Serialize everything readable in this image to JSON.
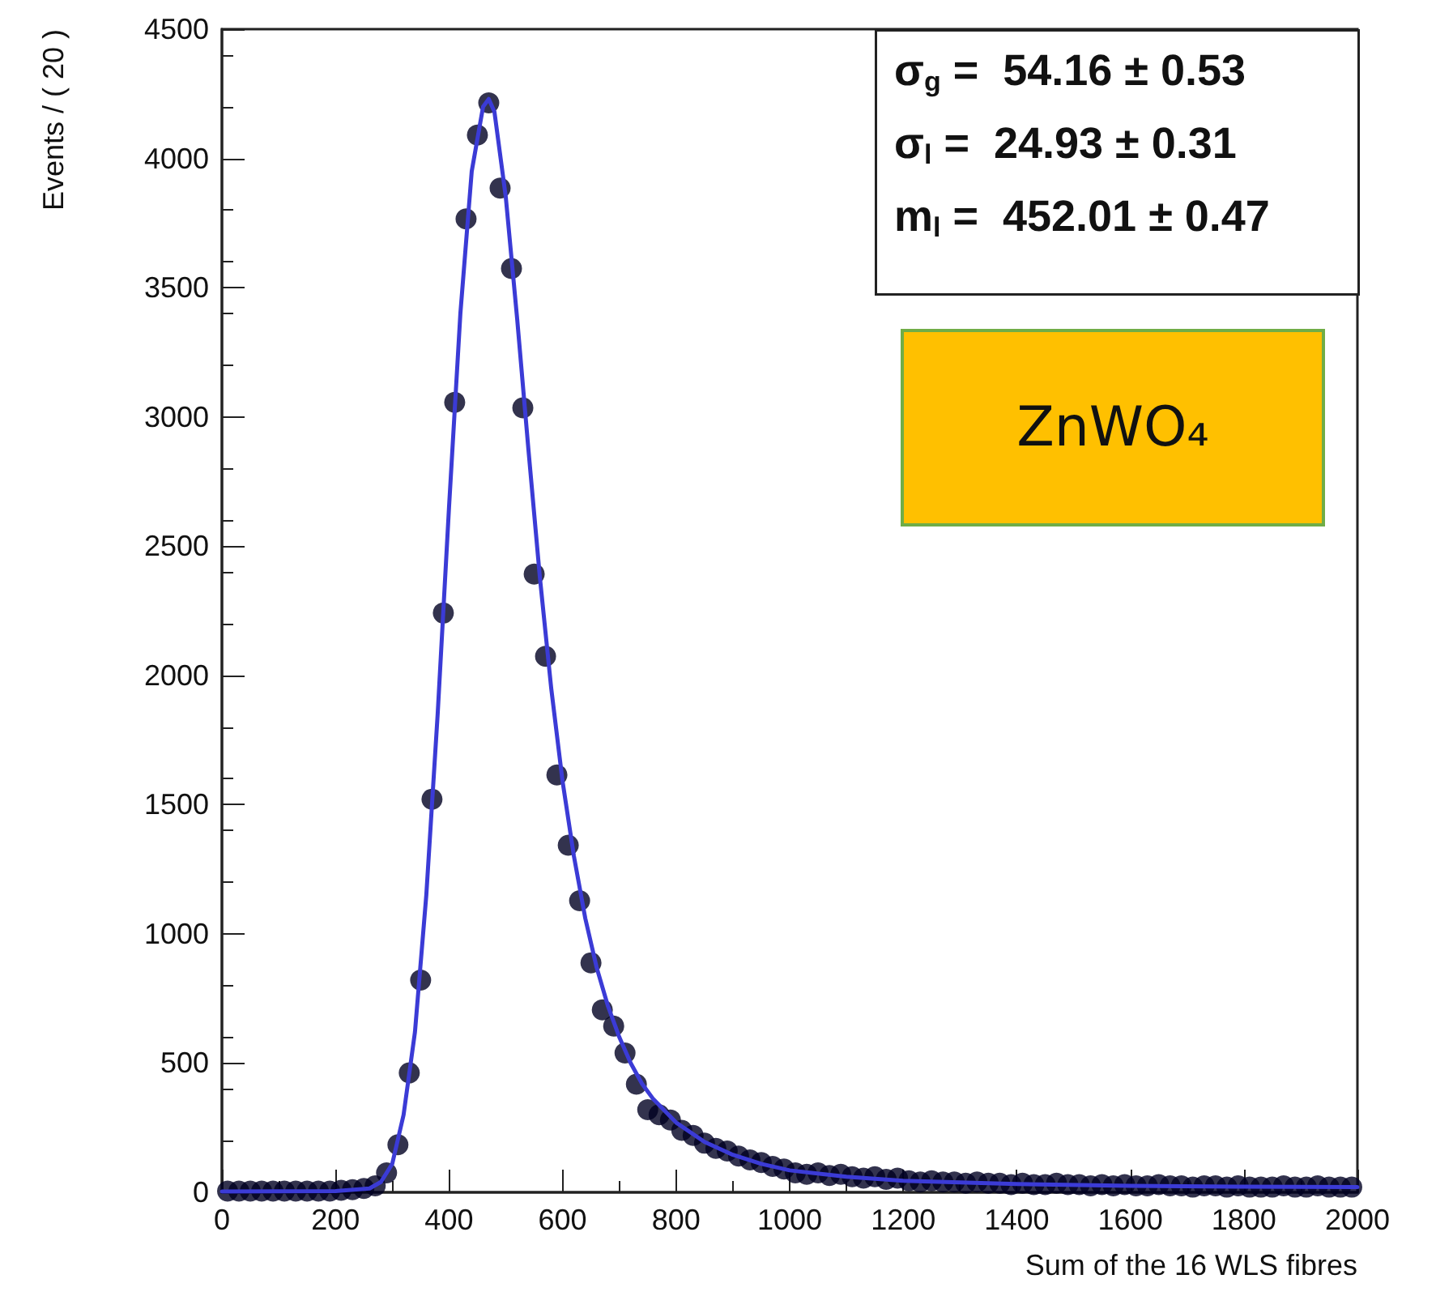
{
  "chart_data": {
    "type": "scatter",
    "xlabel": "Sum of the 16 WLS fibres",
    "ylabel": "Events / ( 20 )",
    "xlim": [
      0,
      2000
    ],
    "xticks": [
      0,
      200,
      400,
      600,
      800,
      1000,
      1200,
      1400,
      1600,
      1800,
      2000
    ],
    "ylim": [
      0,
      4500
    ],
    "yticks": [
      0,
      500,
      1000,
      1500,
      2000,
      2500,
      3000,
      3500,
      4000,
      4500
    ],
    "grid": false,
    "marker": "circle",
    "series": [
      {
        "color": "#000022",
        "x": [
          10,
          30,
          50,
          70,
          90,
          110,
          130,
          150,
          170,
          190,
          210,
          230,
          250,
          270,
          290,
          310,
          330,
          350,
          370,
          390,
          410,
          430,
          450,
          470,
          490,
          510,
          530,
          550,
          570,
          590,
          610,
          630,
          650,
          670,
          690,
          710,
          730,
          750,
          770,
          790,
          810,
          830,
          850,
          870,
          890,
          910,
          930,
          950,
          970,
          990,
          1010,
          1030,
          1050,
          1070,
          1090,
          1110,
          1130,
          1150,
          1170,
          1190,
          1210,
          1230,
          1250,
          1270,
          1290,
          1310,
          1330,
          1350,
          1370,
          1390,
          1410,
          1430,
          1450,
          1470,
          1490,
          1510,
          1530,
          1550,
          1570,
          1590,
          1610,
          1630,
          1650,
          1670,
          1690,
          1710,
          1730,
          1750,
          1770,
          1790,
          1810,
          1830,
          1850,
          1870,
          1890,
          1910,
          1930,
          1950,
          1970,
          1990
        ],
        "values": [
          5,
          5,
          5,
          5,
          5,
          5,
          5,
          5,
          5,
          5,
          8,
          10,
          15,
          25,
          75,
          184,
          462,
          821,
          1521,
          2241,
          3056,
          3766,
          4090,
          4215,
          3885,
          3574,
          3035,
          2392,
          2074,
          1615,
          1343,
          1128,
          888,
          706,
          643,
          539,
          418,
          320,
          300,
          280,
          240,
          220,
          190,
          170,
          160,
          140,
          125,
          115,
          100,
          90,
          75,
          70,
          75,
          65,
          70,
          60,
          55,
          60,
          50,
          55,
          45,
          40,
          45,
          40,
          40,
          35,
          40,
          35,
          35,
          30,
          35,
          30,
          30,
          35,
          30,
          30,
          25,
          30,
          25,
          30,
          25,
          25,
          30,
          25,
          25,
          20,
          25,
          25,
          20,
          25,
          20,
          20,
          20,
          25,
          20,
          20,
          25,
          20,
          20,
          20
        ]
      },
      {
        "type": "line",
        "color": "#3b3bd6",
        "marker": "none",
        "line_style": "solid",
        "x": [
          0,
          200,
          260,
          280,
          300,
          320,
          340,
          360,
          380,
          400,
          420,
          440,
          460,
          470,
          480,
          500,
          520,
          540,
          560,
          580,
          600,
          620,
          640,
          660,
          680,
          700,
          720,
          740,
          760,
          800,
          850,
          900,
          950,
          1000,
          1100,
          1200,
          1400,
          1600,
          1800,
          2000
        ],
        "values": [
          3,
          5,
          15,
          40,
          110,
          300,
          620,
          1150,
          1850,
          2650,
          3400,
          3950,
          4200,
          4230,
          4180,
          3850,
          3380,
          2870,
          2380,
          1950,
          1590,
          1300,
          1060,
          870,
          720,
          600,
          500,
          420,
          360,
          270,
          195,
          145,
          110,
          85,
          60,
          45,
          32,
          25,
          22,
          20
        ]
      }
    ],
    "annotations": [
      "σ$_{g}$ =  54.16 ± 0.53",
      "σ$_{l}$ =  24.93 ± 0.31",
      "m$_{l}$ =  452.01 ± 0.47",
      "ZnWO₄"
    ]
  }
}
